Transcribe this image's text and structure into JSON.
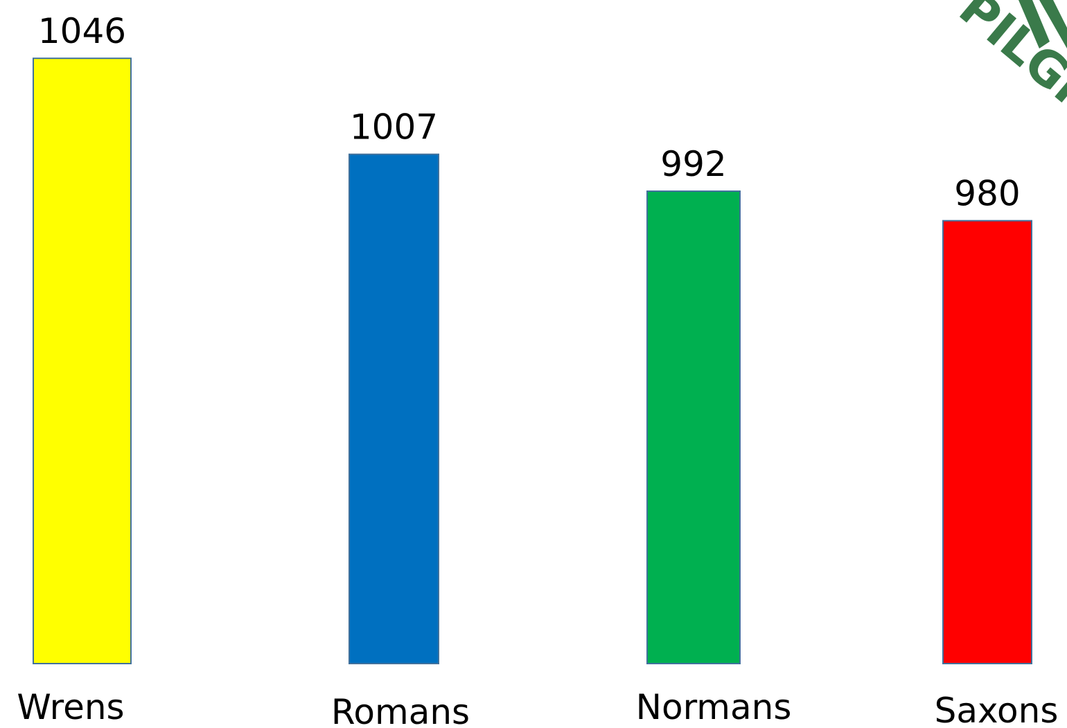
{
  "chart_data": {
    "type": "bar",
    "categories": [
      "Wrens",
      "Romans",
      "Normans",
      "Saxons"
    ],
    "values": [
      1046,
      1007,
      992,
      980
    ],
    "colors": [
      "#ffff00",
      "#0070c0",
      "#00b050",
      "#ff0000"
    ],
    "ylim": [
      800,
      1050
    ],
    "logo": "PILGR"
  }
}
